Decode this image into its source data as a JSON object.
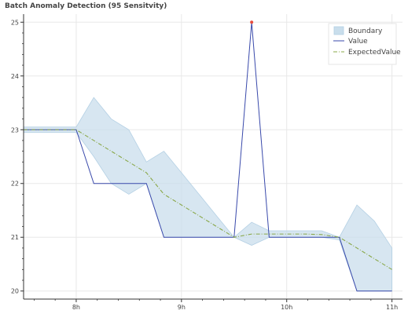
{
  "chart_data": {
    "type": "line",
    "title": "Batch Anomaly Detection (95 Sensitvity)",
    "xlabel": "",
    "ylabel": "",
    "x_unit": "hours (time of day)",
    "xlim": [
      7.5,
      11.1
    ],
    "ylim": [
      19.85,
      25.15
    ],
    "x_ticks": [
      {
        "value": 8,
        "label": "8h"
      },
      {
        "value": 9,
        "label": "9h"
      },
      {
        "value": 10,
        "label": "10h"
      },
      {
        "value": 11,
        "label": "11h"
      }
    ],
    "y_ticks": [
      {
        "value": 20,
        "label": "20"
      },
      {
        "value": 21,
        "label": "21"
      },
      {
        "value": 22,
        "label": "22"
      },
      {
        "value": 23,
        "label": "23"
      },
      {
        "value": 24,
        "label": "24"
      },
      {
        "value": 25,
        "label": "25"
      }
    ],
    "grid": true,
    "legend": {
      "placement": "top-right",
      "entries": [
        "Boundary",
        "Value",
        "ExpectedValue"
      ]
    },
    "series": [
      {
        "name": "Value",
        "color": "#3949ab",
        "style": "solid",
        "points": [
          [
            7.5,
            23.0
          ],
          [
            8.0,
            23.0
          ],
          [
            8.167,
            22.0
          ],
          [
            8.333,
            22.0
          ],
          [
            8.5,
            22.0
          ],
          [
            8.667,
            22.0
          ],
          [
            8.833,
            21.0
          ],
          [
            9.0,
            21.0
          ],
          [
            9.167,
            21.0
          ],
          [
            9.333,
            21.0
          ],
          [
            9.5,
            21.0
          ],
          [
            9.667,
            25.0
          ],
          [
            9.833,
            21.0
          ],
          [
            10.0,
            21.0
          ],
          [
            10.167,
            21.0
          ],
          [
            10.333,
            21.0
          ],
          [
            10.5,
            21.0
          ],
          [
            10.667,
            20.0
          ],
          [
            10.833,
            20.0
          ],
          [
            11.0,
            20.0
          ]
        ]
      },
      {
        "name": "ExpectedValue",
        "color": "#8aa84a",
        "style": "dash-dot",
        "points": [
          [
            7.5,
            23.0
          ],
          [
            8.0,
            23.0
          ],
          [
            8.167,
            22.8
          ],
          [
            8.333,
            22.6
          ],
          [
            8.5,
            22.4
          ],
          [
            8.667,
            22.2
          ],
          [
            8.833,
            21.8
          ],
          [
            9.0,
            21.6
          ],
          [
            9.167,
            21.4
          ],
          [
            9.333,
            21.2
          ],
          [
            9.5,
            21.0
          ],
          [
            9.667,
            21.06
          ],
          [
            9.833,
            21.06
          ],
          [
            10.0,
            21.06
          ],
          [
            10.167,
            21.06
          ],
          [
            10.333,
            21.05
          ],
          [
            10.5,
            21.0
          ],
          [
            10.667,
            20.8
          ],
          [
            10.833,
            20.6
          ],
          [
            11.0,
            20.4
          ]
        ]
      }
    ],
    "boundary": {
      "name": "Boundary",
      "fill": "#c9deec",
      "stroke": "#b4d0e4",
      "upper": [
        [
          7.5,
          23.05
        ],
        [
          8.0,
          23.05
        ],
        [
          8.167,
          23.6
        ],
        [
          8.333,
          23.2
        ],
        [
          8.5,
          23.0
        ],
        [
          8.667,
          22.4
        ],
        [
          8.833,
          22.6
        ],
        [
          9.0,
          22.2
        ],
        [
          9.167,
          21.8
        ],
        [
          9.333,
          21.4
        ],
        [
          9.5,
          21.0
        ],
        [
          9.667,
          21.28
        ],
        [
          9.833,
          21.12
        ],
        [
          10.0,
          21.12
        ],
        [
          10.167,
          21.12
        ],
        [
          10.333,
          21.12
        ],
        [
          10.5,
          21.0
        ],
        [
          10.667,
          21.6
        ],
        [
          10.833,
          21.3
        ],
        [
          11.0,
          20.8
        ]
      ],
      "lower": [
        [
          7.5,
          22.95
        ],
        [
          8.0,
          22.95
        ],
        [
          8.167,
          22.5
        ],
        [
          8.333,
          22.0
        ],
        [
          8.5,
          21.8
        ],
        [
          8.667,
          22.0
        ],
        [
          8.833,
          21.0
        ],
        [
          9.0,
          21.0
        ],
        [
          9.167,
          21.0
        ],
        [
          9.333,
          21.0
        ],
        [
          9.5,
          21.0
        ],
        [
          9.667,
          20.85
        ],
        [
          9.833,
          21.0
        ],
        [
          10.0,
          21.0
        ],
        [
          10.167,
          21.0
        ],
        [
          10.333,
          21.0
        ],
        [
          10.5,
          20.95
        ],
        [
          10.667,
          20.0
        ],
        [
          10.833,
          20.0
        ],
        [
          11.0,
          20.0
        ]
      ]
    },
    "anomalies": [
      {
        "x": 9.667,
        "y": 25.0,
        "color": "#e74c3c"
      }
    ],
    "axis_color": "#333333",
    "grid_color": "#e8e8e8"
  }
}
